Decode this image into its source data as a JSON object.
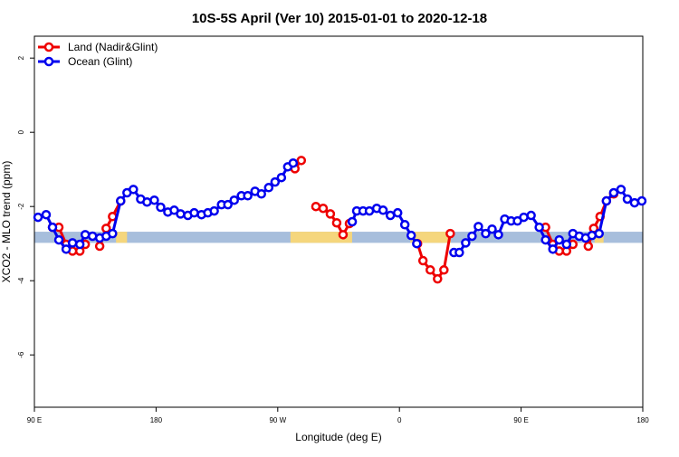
{
  "chart_data": {
    "type": "line",
    "title": "10S-5S April (Ver 10)   2015-01-01 to 2020-12-18",
    "x_label": "Longitude (deg E)",
    "y_label": "XCO2 - MLO trend (ppm)",
    "xlim": [
      90,
      540
    ],
    "ylim": [
      -7.41,
      2.59
    ],
    "xticks": [
      {
        "value": 90,
        "label": "90 E"
      },
      {
        "value": 180,
        "label": "180"
      },
      {
        "value": 270,
        "label": "90 W"
      },
      {
        "value": 360,
        "label": "0"
      },
      {
        "value": 450,
        "label": "90 E"
      },
      {
        "value": 540,
        "label": "180"
      }
    ],
    "yticks": [
      2,
      0,
      -2,
      -4,
      -6
    ],
    "legend": "top-left",
    "band": {
      "range": [
        -2.98,
        -2.68
      ],
      "color": "#a7bedc",
      "land_color": "#f5d67c",
      "land_ranges": [
        [
          150.4,
          158.5
        ],
        [
          279.4,
          325.0
        ],
        [
          368.0,
          398.0
        ],
        [
          504.4,
          511.0
        ]
      ]
    },
    "series": [
      {
        "name": "Land (Nadir&Glint)",
        "color": "#ee0000",
        "x": [
          103.4,
          108.1,
          113.5,
          118.2,
          123.6,
          127.6,
          null,
          138.3,
          143.1,
          147.8,
          153.8,
          null,
          282.7,
          287.4,
          null,
          298.2,
          303.6,
          308.9,
          313.6,
          318.3,
          323.0,
          null,
          373.4,
          377.4,
          382.8,
          388.2,
          392.9,
          397.6,
          null,
          468.1,
          473.5,
          478.2,
          483.6,
          488.3,
          null,
          499.7,
          503.7,
          508.4,
          513.1,
          518.5
        ],
        "values": [
          -2.56,
          -2.56,
          -3.02,
          -3.2,
          -3.2,
          -3.02,
          null,
          -3.07,
          -2.59,
          -2.27,
          -1.85,
          null,
          -0.98,
          -0.76,
          null,
          -2.0,
          -2.05,
          -2.2,
          -2.44,
          -2.76,
          -2.46,
          null,
          -3.0,
          -3.46,
          -3.71,
          -3.95,
          -3.71,
          -2.73,
          null,
          -2.56,
          -3.02,
          -3.2,
          -3.2,
          -3.02,
          null,
          -3.07,
          -2.59,
          -2.27,
          -1.85,
          -1.66
        ]
      },
      {
        "name": "Ocean (Glint)",
        "color": "#0000ee",
        "x": [
          92.7,
          98.7,
          103.4,
          108.1,
          113.5,
          118.2,
          123.6,
          127.6,
          133.0,
          138.3,
          143.1,
          147.8,
          153.8,
          158.5,
          163.2,
          168.6,
          173.3,
          178.7,
          183.4,
          188.7,
          193.4,
          198.1,
          203.5,
          208.2,
          213.6,
          218.3,
          223.0,
          228.4,
          233.1,
          237.8,
          243.1,
          247.8,
          253.2,
          257.9,
          263.3,
          268.0,
          272.7,
          277.4,
          281.4,
          null,
          325.1,
          328.4,
          333.1,
          337.8,
          343.2,
          347.9,
          353.3,
          358.7,
          364.0,
          368.7,
          372.8,
          null,
          400.3,
          404.3,
          409.0,
          413.7,
          418.4,
          423.8,
          428.5,
          433.2,
          437.9,
          442.6,
          447.3,
          452.0,
          457.4,
          463.4,
          468.1,
          473.5,
          478.2,
          483.6,
          488.3,
          493.0,
          497.7,
          502.4,
          507.7,
          513.1,
          518.5,
          523.9,
          528.6,
          533.9,
          539.3
        ],
        "values": [
          -2.29,
          -2.22,
          -2.56,
          -2.9,
          -3.15,
          -2.98,
          -3.02,
          -2.76,
          -2.8,
          -2.85,
          -2.8,
          -2.73,
          -1.85,
          -1.63,
          -1.54,
          -1.8,
          -1.88,
          -1.83,
          -2.02,
          -2.15,
          -2.1,
          -2.2,
          -2.24,
          -2.17,
          -2.22,
          -2.17,
          -2.12,
          -1.95,
          -1.95,
          -1.83,
          -1.71,
          -1.71,
          -1.59,
          -1.66,
          -1.49,
          -1.34,
          -1.22,
          -0.93,
          -0.83,
          null,
          -2.41,
          -2.12,
          -2.12,
          -2.12,
          -2.05,
          -2.1,
          -2.24,
          -2.17,
          -2.49,
          -2.78,
          -3.0,
          null,
          -3.24,
          -3.24,
          -2.98,
          -2.8,
          -2.54,
          -2.73,
          -2.61,
          -2.76,
          -2.34,
          -2.39,
          -2.39,
          -2.29,
          -2.24,
          -2.56,
          -2.9,
          -3.15,
          -2.9,
          -3.02,
          -2.73,
          -2.8,
          -2.85,
          -2.78,
          -2.73,
          -1.85,
          -1.63,
          -1.54,
          -1.8,
          -1.9,
          -1.85
        ]
      }
    ]
  }
}
